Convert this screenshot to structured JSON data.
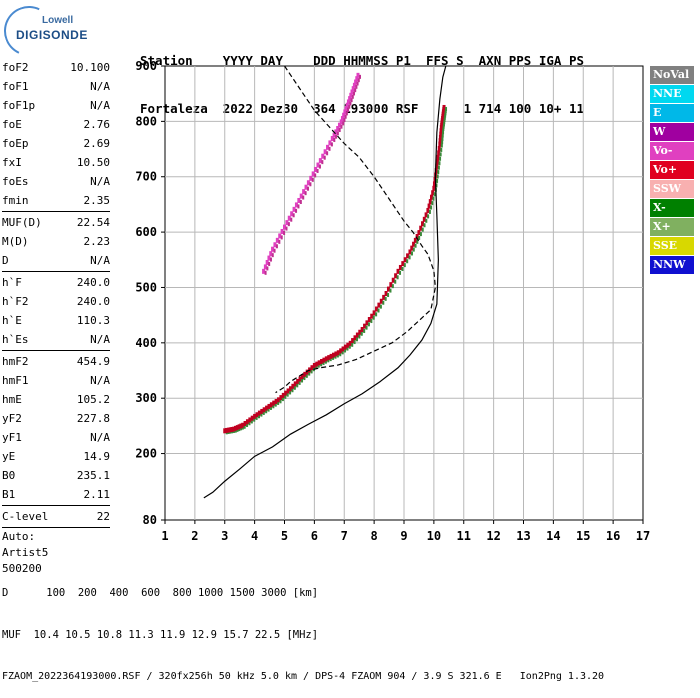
{
  "logo": {
    "line1": "Lowell",
    "line2": "DIGISONDE"
  },
  "header": {
    "line1": "Station    YYYY DAY    DDD HHMMSS P1  FFS S  AXN PPS IGA PS",
    "line2": "Fortaleza  2022 Dez30  364 193000 RSF      1 714 100 10+ 11"
  },
  "params": {
    "group1": [
      {
        "label": "foF2",
        "value": "10.100"
      },
      {
        "label": "foF1",
        "value": "N/A"
      },
      {
        "label": "foF1p",
        "value": "N/A"
      },
      {
        "label": "foE",
        "value": "2.76"
      },
      {
        "label": "foEp",
        "value": "2.69"
      },
      {
        "label": "fxI",
        "value": "10.50"
      },
      {
        "label": "foEs",
        "value": "N/A"
      },
      {
        "label": "fmin",
        "value": "2.35"
      }
    ],
    "group2": [
      {
        "label": "MUF(D)",
        "value": "22.54"
      },
      {
        "label": "M(D)",
        "value": "2.23"
      },
      {
        "label": "D",
        "value": "N/A"
      }
    ],
    "group3": [
      {
        "label": "h`F",
        "value": "240.0"
      },
      {
        "label": "h`F2",
        "value": "240.0"
      },
      {
        "label": "h`E",
        "value": "110.3"
      },
      {
        "label": "h`Es",
        "value": "N/A"
      }
    ],
    "group4": [
      {
        "label": "hmF2",
        "value": "454.9"
      },
      {
        "label": "hmF1",
        "value": "N/A"
      },
      {
        "label": "hmE",
        "value": "105.2"
      },
      {
        "label": "yF2",
        "value": "227.8"
      },
      {
        "label": "yF1",
        "value": "N/A"
      },
      {
        "label": "yE",
        "value": "14.9"
      },
      {
        "label": "B0",
        "value": "235.1"
      },
      {
        "label": "B1",
        "value": "2.11"
      }
    ],
    "group5": [
      {
        "label": "C-level",
        "value": "22"
      }
    ],
    "auto": [
      "Auto:",
      "Artist5",
      "500200"
    ]
  },
  "legend": [
    {
      "label": "NoVal",
      "color": "#808080"
    },
    {
      "label": "NNE",
      "color": "#00d8f0"
    },
    {
      "label": "E",
      "color": "#00b8e8"
    },
    {
      "label": "W",
      "color": "#a000a0"
    },
    {
      "label": "Vo-",
      "color": "#e040c0"
    },
    {
      "label": "Vo+",
      "color": "#e00020"
    },
    {
      "label": "SSW",
      "color": "#f8b0b0"
    },
    {
      "label": "X-",
      "color": "#008000"
    },
    {
      "label": "X+",
      "color": "#80b060"
    },
    {
      "label": "SSE",
      "color": "#d8d800"
    },
    {
      "label": "NNW",
      "color": "#1010d0"
    }
  ],
  "bottom": {
    "d_line": "D      100  200  400  600  800 1000 1500 3000 [km]",
    "muf_line": "MUF  10.4 10.5 10.8 11.3 11.9 12.9 15.7 22.5 [MHz]",
    "file_line": "FZAOM_2022364193000.RSF / 320fx256h 50 kHz 5.0 km / DPS-4 FZAOM 904 / 3.9 S 321.6 E   Ion2Png 1.3.20"
  },
  "chart_data": {
    "type": "scatter",
    "title": "",
    "xlim": [
      1,
      17
    ],
    "ylim": [
      80,
      900
    ],
    "xticks": [
      1,
      2,
      3,
      4,
      5,
      6,
      7,
      8,
      9,
      10,
      11,
      12,
      13,
      14,
      15,
      16,
      17
    ],
    "yticks": [
      80,
      200,
      300,
      400,
      500,
      600,
      700,
      800,
      900
    ],
    "grid": true,
    "series": [
      {
        "name": "",
        "color": "#c00020",
        "x": [
          3.0,
          3.3,
          3.6,
          4.0,
          4.4,
          4.8,
          5.2,
          5.6,
          6.0,
          6.4,
          6.8,
          7.2,
          7.6,
          8.0,
          8.4,
          8.8,
          9.2,
          9.5,
          9.8,
          10.0,
          10.1,
          10.2,
          10.25,
          10.3,
          10.35
        ],
        "y": [
          242,
          245,
          252,
          268,
          283,
          298,
          318,
          340,
          360,
          372,
          383,
          400,
          425,
          455,
          490,
          530,
          565,
          600,
          640,
          680,
          720,
          760,
          790,
          810,
          830
        ]
      },
      {
        "name": "",
        "color": "#e040c0",
        "x": [
          4.3,
          4.6,
          5.0,
          5.4,
          5.8,
          6.2,
          6.6,
          6.9,
          7.1,
          7.3,
          7.5
        ],
        "y": [
          530,
          570,
          610,
          650,
          690,
          730,
          770,
          800,
          830,
          860,
          890
        ]
      },
      {
        "name": "",
        "color": "#000000",
        "dashed": false,
        "x": [
          2.3,
          2.6,
          3.0,
          3.5,
          4.0,
          4.6,
          5.2,
          5.8,
          6.4,
          7.0,
          7.6,
          8.2,
          8.8,
          9.2,
          9.6,
          9.9,
          10.1,
          10.15,
          10.1,
          10.05,
          10.1,
          10.2,
          10.3,
          10.4
        ],
        "y": [
          120,
          130,
          150,
          172,
          195,
          212,
          235,
          253,
          270,
          290,
          308,
          330,
          355,
          378,
          405,
          435,
          470,
          550,
          630,
          700,
          780,
          840,
          880,
          900
        ]
      },
      {
        "name": "",
        "color": "#000000",
        "dashed": true,
        "x": [
          5.0,
          5.5,
          6.0,
          6.5,
          7.0,
          7.5,
          8.0,
          8.5,
          9.0,
          9.3,
          9.6,
          9.8,
          10.0,
          10.05,
          9.9,
          9.5,
          9.1,
          8.6,
          8.0,
          7.4,
          6.8,
          6.2,
          5.8,
          5.5,
          5.2,
          5.0,
          4.7
        ],
        "y": [
          900,
          860,
          820,
          790,
          760,
          735,
          700,
          660,
          620,
          600,
          575,
          560,
          530,
          500,
          460,
          440,
          420,
          400,
          385,
          370,
          360,
          355,
          350,
          340,
          330,
          320,
          310
        ]
      }
    ]
  }
}
